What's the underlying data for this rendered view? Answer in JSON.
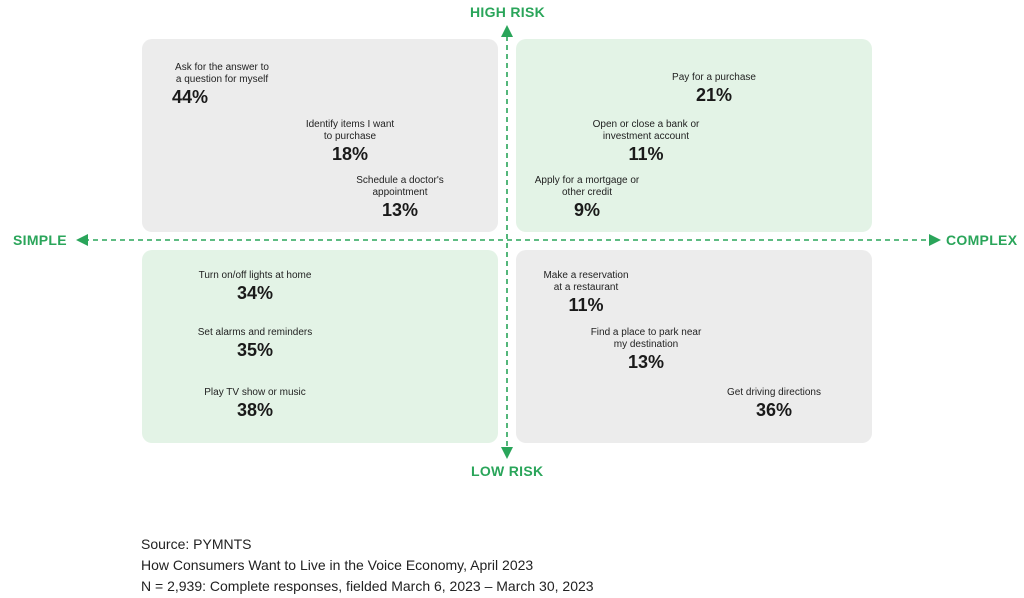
{
  "axes": {
    "top": "HIGH RISK",
    "bottom": "LOW RISK",
    "left": "SIMPLE",
    "right": "COMPLEX"
  },
  "colors": {
    "accent": "#2aa55a",
    "quad_grey": "#ececec",
    "quad_green": "#e3f3e6"
  },
  "quadrants": {
    "simple_high_risk": [
      {
        "label_lines": [
          "Ask for the answer to",
          "a question for myself"
        ],
        "value": "44%"
      },
      {
        "label_lines": [
          "Identify items I want",
          "to purchase"
        ],
        "value": "18%"
      },
      {
        "label_lines": [
          "Schedule a doctor's",
          "appointment"
        ],
        "value": "13%"
      }
    ],
    "complex_high_risk": [
      {
        "label_lines": [
          "Pay for a purchase"
        ],
        "value": "21%"
      },
      {
        "label_lines": [
          "Open or close a bank or",
          "investment account"
        ],
        "value": "11%"
      },
      {
        "label_lines": [
          "Apply for a mortgage or",
          "other credit"
        ],
        "value": "9%"
      }
    ],
    "simple_low_risk": [
      {
        "label_lines": [
          "Turn on/off lights at home"
        ],
        "value": "34%"
      },
      {
        "label_lines": [
          "Set alarms and reminders"
        ],
        "value": "35%"
      },
      {
        "label_lines": [
          "Play TV show or music"
        ],
        "value": "38%"
      }
    ],
    "complex_low_risk": [
      {
        "label_lines": [
          "Make a reservation",
          "at a restaurant"
        ],
        "value": "11%"
      },
      {
        "label_lines": [
          "Find a place to park near",
          "my destination"
        ],
        "value": "13%"
      },
      {
        "label_lines": [
          "Get driving directions"
        ],
        "value": "36%"
      }
    ]
  },
  "footer": {
    "source": "Source: PYMNTS",
    "report": "How Consumers Want to Live in the Voice Economy, April 2023",
    "sample": "N = 2,939: Complete responses, fielded March 6, 2023 – March 30, 2023"
  }
}
